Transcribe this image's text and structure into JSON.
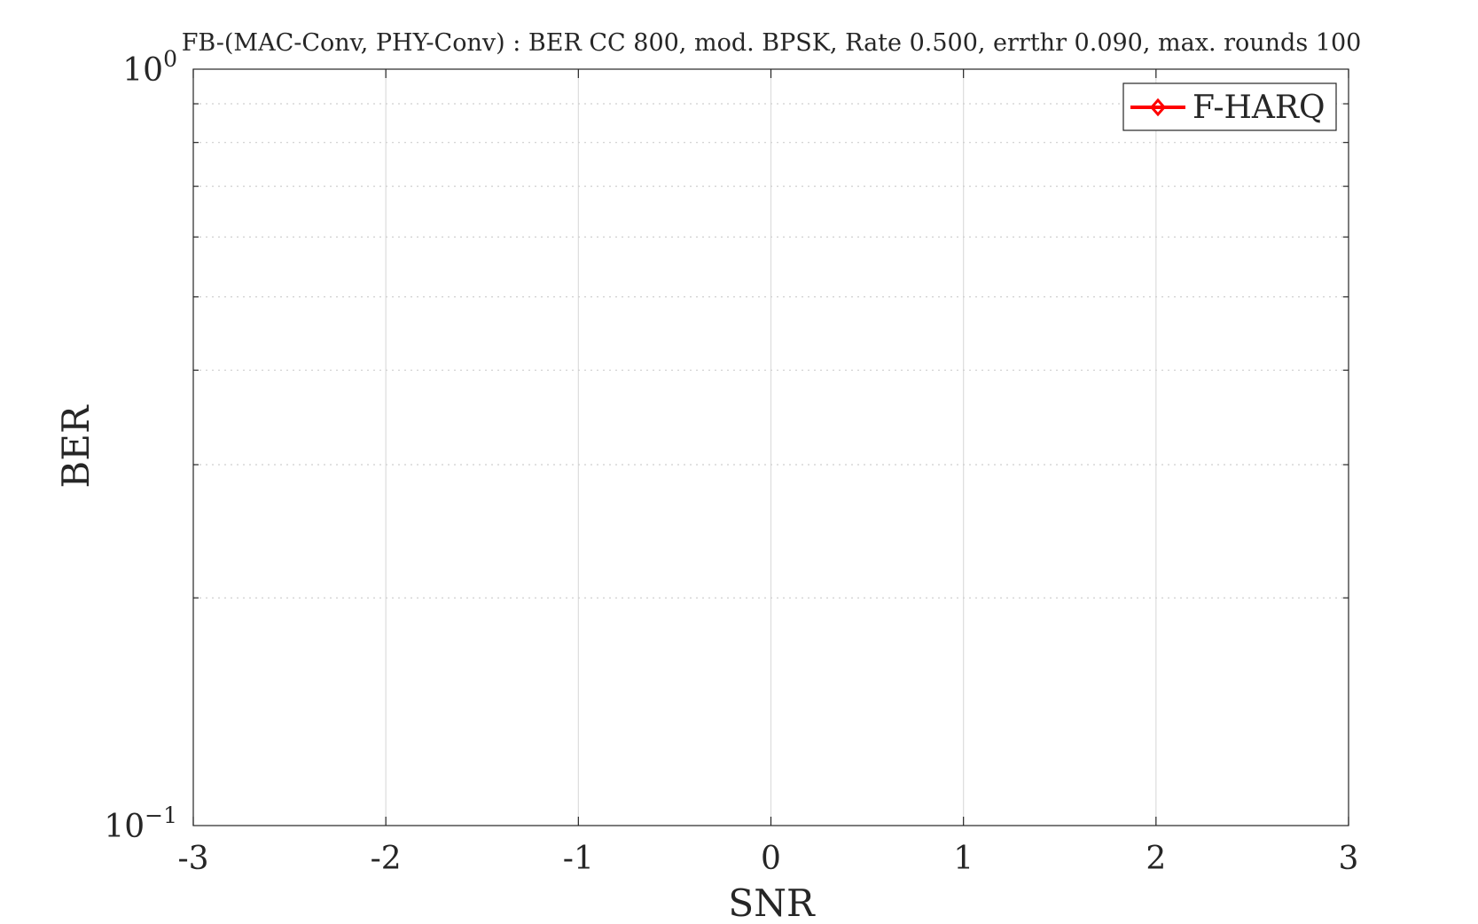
{
  "chart_data": {
    "type": "line",
    "title": "FB-(MAC-Conv, PHY-Conv) : BER CC 800, mod. BPSK, Rate 0.500, errthr 0.090, max. rounds 100",
    "xlabel": "SNR",
    "ylabel": "BER",
    "xlim": [
      -3,
      3
    ],
    "ylim": [
      0.1,
      1
    ],
    "yscale": "log",
    "x_ticks": [
      -3,
      -2,
      -1,
      0,
      1,
      2,
      3
    ],
    "x_tick_labels": [
      "-3",
      "-2",
      "-1",
      "0",
      "1",
      "2",
      "3"
    ],
    "y_tick_labels": [
      {
        "base": "10",
        "exp": "0",
        "value": 1
      },
      {
        "base": "10",
        "exp": "−1",
        "value": 0.1
      }
    ],
    "y_minor_ticks": [
      0.2,
      0.3,
      0.4,
      0.5,
      0.6,
      0.7,
      0.8,
      0.9
    ],
    "grid": true,
    "legend_position": "top-right",
    "series": [
      {
        "name": "F-HARQ",
        "color": "#ff0000",
        "marker": "diamond",
        "x": [],
        "y": []
      }
    ]
  }
}
